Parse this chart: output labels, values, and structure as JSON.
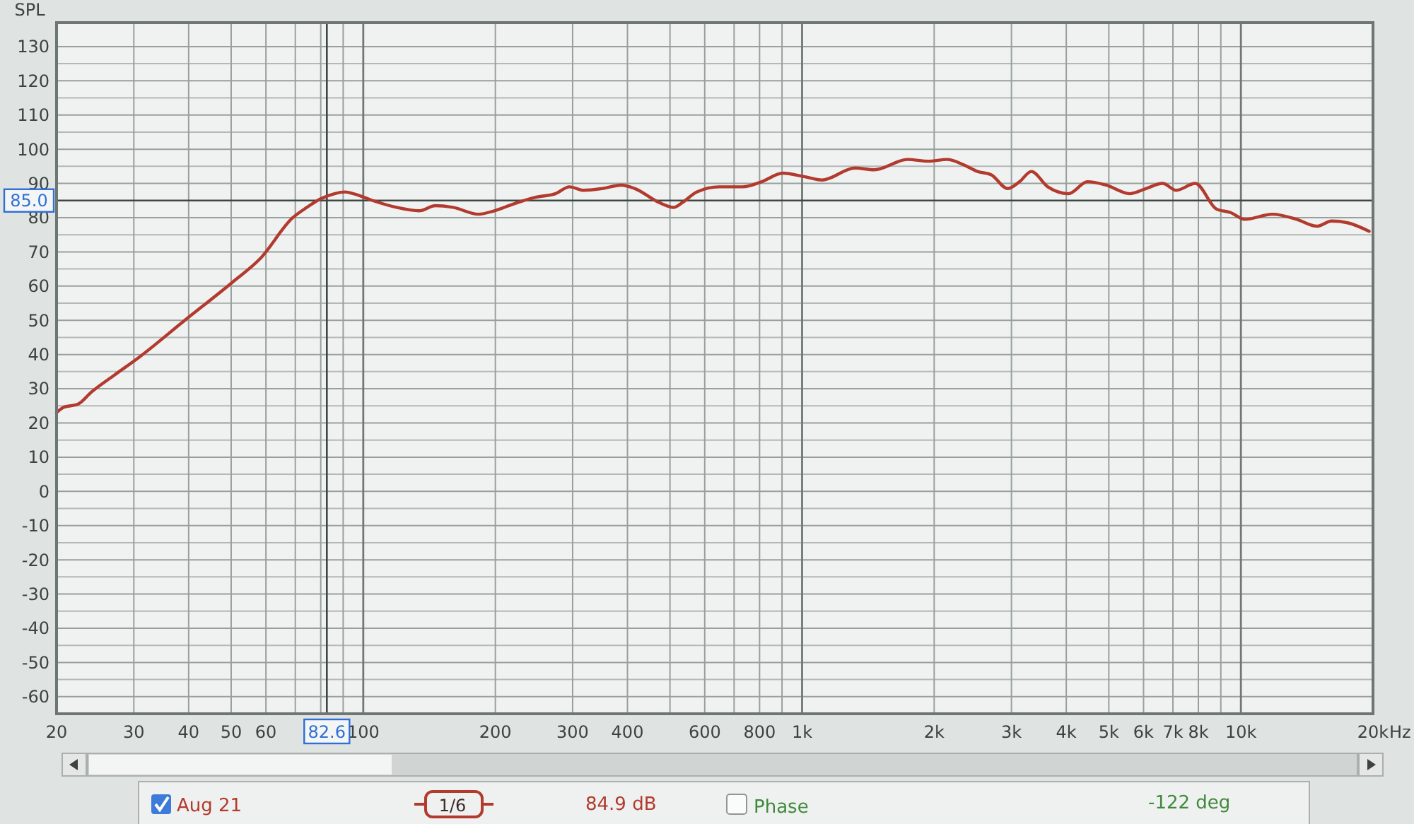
{
  "chart_data": {
    "type": "line",
    "ylabel": "SPL",
    "xlabel": "Hz",
    "log": "x",
    "grid": true,
    "legend": "bottom",
    "xlim": [
      20,
      20000
    ],
    "ylim": [
      -65,
      137
    ],
    "xticks": [
      20,
      30,
      40,
      50,
      60,
      {
        "value": 70,
        "label": null
      },
      {
        "value": 80,
        "label": null
      },
      {
        "value": 90,
        "label": null
      },
      100,
      200,
      300,
      400,
      {
        "value": 500,
        "label": null
      },
      600,
      {
        "value": 700,
        "label": null
      },
      800,
      {
        "value": 900,
        "label": null
      },
      {
        "value": 1000,
        "label": "1k"
      },
      {
        "value": 2000,
        "label": "2k"
      },
      {
        "value": 3000,
        "label": "3k"
      },
      {
        "value": 4000,
        "label": "4k"
      },
      {
        "value": 5000,
        "label": "5k"
      },
      {
        "value": 6000,
        "label": "6k"
      },
      {
        "value": 7000,
        "label": "7k"
      },
      {
        "value": 8000,
        "label": "8k"
      },
      {
        "value": 9000,
        "label": null
      },
      {
        "value": 10000,
        "label": "10k"
      },
      {
        "value": 20000,
        "label": "20k"
      }
    ],
    "yticks": [
      130,
      {
        "value": 125,
        "label": null
      },
      120,
      {
        "value": 115,
        "label": null
      },
      110,
      {
        "value": 105,
        "label": null
      },
      100,
      {
        "value": 95,
        "label": null
      },
      90,
      80,
      {
        "value": 75,
        "label": null
      },
      70,
      {
        "value": 65,
        "label": null
      },
      60,
      {
        "value": 55,
        "label": null
      },
      50,
      {
        "value": 45,
        "label": null
      },
      40,
      {
        "value": 35,
        "label": null
      },
      30,
      {
        "value": 25,
        "label": null
      },
      20,
      {
        "value": 15,
        "label": null
      },
      10,
      {
        "value": 5,
        "label": null
      },
      0,
      {
        "value": -5,
        "label": null
      },
      -10,
      {
        "value": -15,
        "label": null
      },
      -20,
      {
        "value": -25,
        "label": null
      },
      -30,
      {
        "value": -35,
        "label": null
      },
      -40,
      {
        "value": -45,
        "label": null
      },
      -50,
      {
        "value": -55,
        "label": null
      },
      -60
    ],
    "ref_lines": [
      {
        "axis": "x",
        "value": 82.6,
        "label": "82.6"
      },
      {
        "axis": "y",
        "value": 85,
        "label": "85.0"
      }
    ],
    "x": [
      20,
      20.7,
      22.4,
      24,
      27.1,
      30.7,
      39.2,
      50.2,
      58.2,
      69.1,
      74.4,
      80,
      86,
      91,
      95,
      105,
      119,
      134,
      146,
      160,
      183,
      199,
      220,
      248,
      274,
      295,
      318,
      350,
      387,
      416,
      471,
      510,
      535,
      575,
      648,
      733,
      809,
      904,
      1010,
      1110,
      1320,
      1460,
      1740,
      1940,
      2140,
      2330,
      2510,
      2700,
      2940,
      3130,
      3330,
      3630,
      4050,
      4470,
      4930,
      5580,
      6080,
      6630,
      7130,
      7870,
      8800,
      9470,
      10200,
      11800,
      13400,
      14900,
      16100,
      17500,
      19600
    ],
    "series": [
      {
        "name": "Aug 21",
        "color": "#b23a2e",
        "values": [
          23,
          24.5,
          25.5,
          29,
          34,
          39,
          50,
          61,
          68,
          80,
          83,
          85.5,
          87,
          87.5,
          87,
          85,
          83,
          82,
          83.5,
          83,
          81,
          82,
          84,
          86,
          87,
          89,
          88,
          88.5,
          89.5,
          88.5,
          84.5,
          83,
          84.5,
          87.5,
          89,
          89,
          90.5,
          93,
          92,
          91,
          94.5,
          94,
          97,
          96.5,
          97,
          95.5,
          93.5,
          92.5,
          88.5,
          90.5,
          93.5,
          89,
          87,
          90.5,
          89.5,
          87,
          88.5,
          90,
          88,
          90,
          82.5,
          81.5,
          79.5,
          81,
          79.5,
          77.5,
          79,
          78.5,
          76
        ]
      }
    ],
    "annotations": [
      "1/6",
      "84.9 dB",
      "Phase",
      "-122 deg"
    ]
  }
}
